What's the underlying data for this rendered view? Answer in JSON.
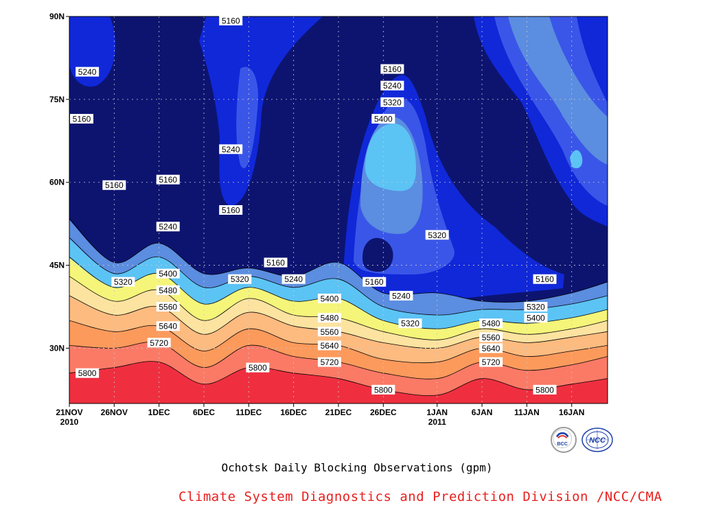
{
  "chart_data": {
    "type": "heatmap",
    "subtype": "filled-contour (time-latitude)",
    "title": "Ochotsk Daily Blocking Observations (gpm)",
    "xlabel": "",
    "ylabel": "",
    "x_start": "2010-11-21",
    "x_end": "2011-01-20",
    "x_tick_labels": [
      {
        "date": "2010-11-21",
        "label": "21NOV",
        "sub": "2010"
      },
      {
        "date": "2010-11-26",
        "label": "26NOV",
        "sub": ""
      },
      {
        "date": "2010-12-01",
        "label": "1DEC",
        "sub": ""
      },
      {
        "date": "2010-12-06",
        "label": "6DEC",
        "sub": ""
      },
      {
        "date": "2010-12-11",
        "label": "11DEC",
        "sub": ""
      },
      {
        "date": "2010-12-16",
        "label": "16DEC",
        "sub": ""
      },
      {
        "date": "2010-12-21",
        "label": "21DEC",
        "sub": ""
      },
      {
        "date": "2010-12-26",
        "label": "26DEC",
        "sub": ""
      },
      {
        "date": "2011-01-01",
        "label": "1JAN",
        "sub": "2011"
      },
      {
        "date": "2011-01-06",
        "label": "6JAN",
        "sub": ""
      },
      {
        "date": "2011-01-11",
        "label": "11JAN",
        "sub": ""
      },
      {
        "date": "2011-01-16",
        "label": "16JAN",
        "sub": ""
      }
    ],
    "ylim": [
      20,
      90
    ],
    "y_ticks": [
      {
        "lat": 30,
        "label": "30N"
      },
      {
        "lat": 45,
        "label": "45N"
      },
      {
        "lat": 60,
        "label": "60N"
      },
      {
        "lat": 75,
        "label": "75N"
      },
      {
        "lat": 90,
        "label": "90N"
      }
    ],
    "grid": true,
    "contour_levels": [
      5160,
      5240,
      5320,
      5400,
      5480,
      5560,
      5640,
      5720,
      5800
    ],
    "fill_colors": [
      "#0d1470",
      "#1028d8",
      "#3a56e8",
      "#5b8de0",
      "#5cc3f5",
      "#f5f57a",
      "#fde3a0",
      "#fdbb80",
      "#fc9a5c",
      "#fb7a66",
      "#ef2f40"
    ],
    "contour_lines": [
      {
        "level": 5800,
        "points": [
          [
            "2010-11-21",
            25.5
          ],
          [
            "2010-11-26",
            26.5
          ],
          [
            "2010-12-01",
            27.5
          ],
          [
            "2010-12-06",
            23.5
          ],
          [
            "2010-12-11",
            26.5
          ],
          [
            "2010-12-16",
            25.5
          ],
          [
            "2010-12-21",
            24.5
          ],
          [
            "2010-12-26",
            22.5
          ],
          [
            "2011-01-01",
            21.5
          ],
          [
            "2011-01-06",
            24.5
          ],
          [
            "2011-01-11",
            22.5
          ],
          [
            "2011-01-16",
            23.5
          ],
          [
            "2011-01-20",
            24.5
          ]
        ]
      },
      {
        "level": 5720,
        "points": [
          [
            "2010-11-21",
            30.5
          ],
          [
            "2010-11-26",
            30
          ],
          [
            "2010-12-01",
            31
          ],
          [
            "2010-12-06",
            26.5
          ],
          [
            "2010-12-11",
            30.5
          ],
          [
            "2010-12-16",
            28.5
          ],
          [
            "2010-12-21",
            27.5
          ],
          [
            "2010-12-26",
            25.5
          ],
          [
            "2011-01-01",
            24.5
          ],
          [
            "2011-01-06",
            27.5
          ],
          [
            "2011-01-11",
            26
          ],
          [
            "2011-01-16",
            27
          ],
          [
            "2011-01-20",
            28.5
          ]
        ]
      },
      {
        "level": 5640,
        "points": [
          [
            "2010-11-21",
            35
          ],
          [
            "2010-11-26",
            33
          ],
          [
            "2010-12-01",
            34
          ],
          [
            "2010-12-06",
            29.5
          ],
          [
            "2010-12-11",
            33.5
          ],
          [
            "2010-12-16",
            31
          ],
          [
            "2010-12-21",
            30.5
          ],
          [
            "2010-12-26",
            28
          ],
          [
            "2011-01-01",
            27.5
          ],
          [
            "2011-01-06",
            30
          ],
          [
            "2011-01-11",
            28.5
          ],
          [
            "2011-01-16",
            29.5
          ],
          [
            "2011-01-20",
            30.5
          ]
        ]
      },
      {
        "level": 5560,
        "points": [
          [
            "2010-11-21",
            39.5
          ],
          [
            "2010-11-26",
            36
          ],
          [
            "2010-12-01",
            37.5
          ],
          [
            "2010-12-06",
            32.5
          ],
          [
            "2010-12-11",
            36.5
          ],
          [
            "2010-12-16",
            34
          ],
          [
            "2010-12-21",
            33
          ],
          [
            "2010-12-26",
            31
          ],
          [
            "2011-01-01",
            30
          ],
          [
            "2011-01-06",
            32
          ],
          [
            "2011-01-11",
            31
          ],
          [
            "2011-01-16",
            32
          ],
          [
            "2011-01-20",
            33
          ]
        ]
      },
      {
        "level": 5480,
        "points": [
          [
            "2010-11-21",
            43
          ],
          [
            "2010-11-26",
            38.5
          ],
          [
            "2010-12-01",
            40.5
          ],
          [
            "2010-12-06",
            35
          ],
          [
            "2010-12-11",
            39
          ],
          [
            "2010-12-16",
            36
          ],
          [
            "2010-12-21",
            35.5
          ],
          [
            "2010-12-26",
            33
          ],
          [
            "2011-01-01",
            31.5
          ],
          [
            "2011-01-06",
            33.5
          ],
          [
            "2011-01-11",
            32.5
          ],
          [
            "2011-01-16",
            33.5
          ],
          [
            "2011-01-20",
            35
          ]
        ]
      },
      {
        "level": 5400,
        "points": [
          [
            "2010-11-21",
            46.5
          ],
          [
            "2010-11-26",
            41
          ],
          [
            "2010-12-01",
            43.5
          ],
          [
            "2010-12-06",
            38
          ],
          [
            "2010-12-11",
            41
          ],
          [
            "2010-12-16",
            38.5
          ],
          [
            "2010-12-21",
            39
          ],
          [
            "2010-12-26",
            35
          ],
          [
            "2011-01-01",
            33.5
          ],
          [
            "2011-01-06",
            35
          ],
          [
            "2011-01-11",
            34.5
          ],
          [
            "2011-01-16",
            35.5
          ],
          [
            "2011-01-20",
            37
          ]
        ]
      },
      {
        "level": 5320,
        "points": [
          [
            "2010-11-21",
            50
          ],
          [
            "2010-11-26",
            43.5
          ],
          [
            "2010-12-01",
            46.5
          ],
          [
            "2010-12-06",
            41
          ],
          [
            "2010-12-11",
            43
          ],
          [
            "2010-12-16",
            41
          ],
          [
            "2010-12-21",
            42.5
          ],
          [
            "2010-12-26",
            37.5
          ],
          [
            "2011-01-01",
            36
          ],
          [
            "2011-01-06",
            37
          ],
          [
            "2011-01-11",
            37
          ],
          [
            "2011-01-16",
            38
          ],
          [
            "2011-01-20",
            39.5
          ]
        ]
      },
      {
        "level": 5240,
        "points": [
          [
            "2010-11-21",
            53.5
          ],
          [
            "2010-11-26",
            45.5
          ],
          [
            "2010-12-01",
            49
          ],
          [
            "2010-12-06",
            43.5
          ],
          [
            "2010-12-11",
            44.5
          ],
          [
            "2010-12-16",
            43
          ],
          [
            "2010-12-21",
            45.5
          ],
          [
            "2010-12-26",
            40
          ],
          [
            "2011-01-01",
            40
          ],
          [
            "2011-01-06",
            38.5
          ],
          [
            "2011-01-11",
            38.5
          ],
          [
            "2011-01-16",
            40
          ],
          [
            "2011-01-20",
            42
          ]
        ]
      }
    ],
    "labels": [
      {
        "value": "5800",
        "date": "2010-11-23",
        "lat": 25.5
      },
      {
        "value": "5800",
        "date": "2010-12-12",
        "lat": 26.5
      },
      {
        "value": "5800",
        "date": "2010-12-26",
        "lat": 22.5
      },
      {
        "value": "5800",
        "date": "2011-01-13",
        "lat": 22.5
      },
      {
        "value": "5720",
        "date": "2010-12-01",
        "lat": 31
      },
      {
        "value": "5720",
        "date": "2010-12-20",
        "lat": 27.5
      },
      {
        "value": "5720",
        "date": "2011-01-07",
        "lat": 27.5
      },
      {
        "value": "5640",
        "date": "2010-12-02",
        "lat": 34
      },
      {
        "value": "5640",
        "date": "2010-12-20",
        "lat": 30.5
      },
      {
        "value": "5640",
        "date": "2011-01-07",
        "lat": 30
      },
      {
        "value": "5560",
        "date": "2010-12-02",
        "lat": 37.5
      },
      {
        "value": "5560",
        "date": "2010-12-20",
        "lat": 33
      },
      {
        "value": "5560",
        "date": "2011-01-07",
        "lat": 32
      },
      {
        "value": "5480",
        "date": "2010-12-02",
        "lat": 40.5
      },
      {
        "value": "5480",
        "date": "2010-12-20",
        "lat": 35.5
      },
      {
        "value": "5480",
        "date": "2011-01-07",
        "lat": 34.5
      },
      {
        "value": "5400",
        "date": "2010-12-02",
        "lat": 43.5
      },
      {
        "value": "5400",
        "date": "2010-12-20",
        "lat": 39
      },
      {
        "value": "5400",
        "date": "2011-01-12",
        "lat": 35.5
      },
      {
        "value": "5400",
        "date": "2010-12-26",
        "lat": 71.5
      },
      {
        "value": "5320",
        "date": "2010-11-27",
        "lat": 42
      },
      {
        "value": "5320",
        "date": "2010-12-10",
        "lat": 42.5
      },
      {
        "value": "5320",
        "date": "2010-12-29",
        "lat": 34.5
      },
      {
        "value": "5320",
        "date": "2011-01-12",
        "lat": 37.5
      },
      {
        "value": "5320",
        "date": "2010-12-27",
        "lat": 74.5
      },
      {
        "value": "5320",
        "date": "2011-01-01",
        "lat": 50.5
      },
      {
        "value": "5240",
        "date": "2010-11-23",
        "lat": 80
      },
      {
        "value": "5240",
        "date": "2010-12-09",
        "lat": 66
      },
      {
        "value": "5240",
        "date": "2010-12-02",
        "lat": 52
      },
      {
        "value": "5240",
        "date": "2010-12-16",
        "lat": 42.5
      },
      {
        "value": "5240",
        "date": "2010-12-28",
        "lat": 39.5
      },
      {
        "value": "5240",
        "date": "2010-12-27",
        "lat": 77.5
      },
      {
        "value": "5160",
        "date": "2010-11-21",
        "lat": 71.5
      },
      {
        "value": "5160",
        "date": "2010-11-26",
        "lat": 59.5
      },
      {
        "value": "5160",
        "date": "2010-12-02",
        "lat": 60.5
      },
      {
        "value": "5160",
        "date": "2010-12-09",
        "lat": 55
      },
      {
        "value": "5160",
        "date": "2010-12-09",
        "lat": 90
      },
      {
        "value": "5160",
        "date": "2010-12-14",
        "lat": 45.5
      },
      {
        "value": "5160",
        "date": "2010-12-25",
        "lat": 42
      },
      {
        "value": "5160",
        "date": "2010-12-27",
        "lat": 80.5
      },
      {
        "value": "5160",
        "date": "2011-01-13",
        "lat": 42.5
      }
    ]
  },
  "caption": {
    "title": "Ochotsk Daily Blocking Observations (gpm)",
    "credit": "Climate System Diagnostics and Prediction Division /NCC/CMA"
  },
  "logos": [
    {
      "name": "BCC",
      "text": "BCC",
      "ring": "#9a9a9a",
      "color": "#1a3fa8"
    },
    {
      "name": "NCC",
      "text": "NCC",
      "ring": "#1a3fa8",
      "color": "#1a3fa8"
    }
  ]
}
